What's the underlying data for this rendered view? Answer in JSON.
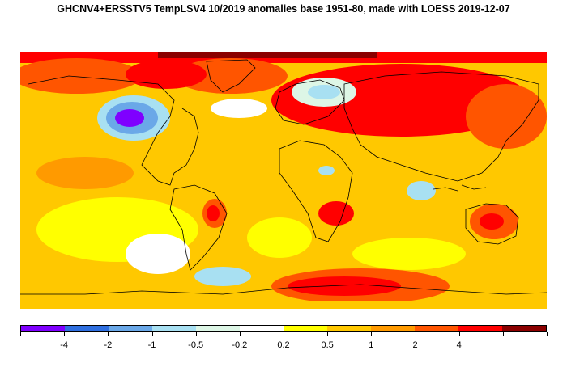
{
  "title": "GHCNV4+ERSSTV5 TempLSV4 10/2019 anomalies base 1951-80, made with LOESS 2019-12-07",
  "legend": {
    "colors": [
      "#7f00ff",
      "#2f6fe0",
      "#6aa8e8",
      "#a8e0f2",
      "#ddf6e6",
      "#ffffff",
      "#ffff00",
      "#ffc800",
      "#ff9a00",
      "#ff5500",
      "#ff0000",
      "#8b0000"
    ],
    "labels": [
      "-4",
      "-2",
      "-1",
      "-0.5",
      "-0.2",
      "0.2",
      "0.5",
      "1",
      "2",
      "4"
    ]
  },
  "map": {
    "background_color": "#ffc800",
    "coastline_color": "#000000",
    "land_color": "#ffd633"
  }
}
